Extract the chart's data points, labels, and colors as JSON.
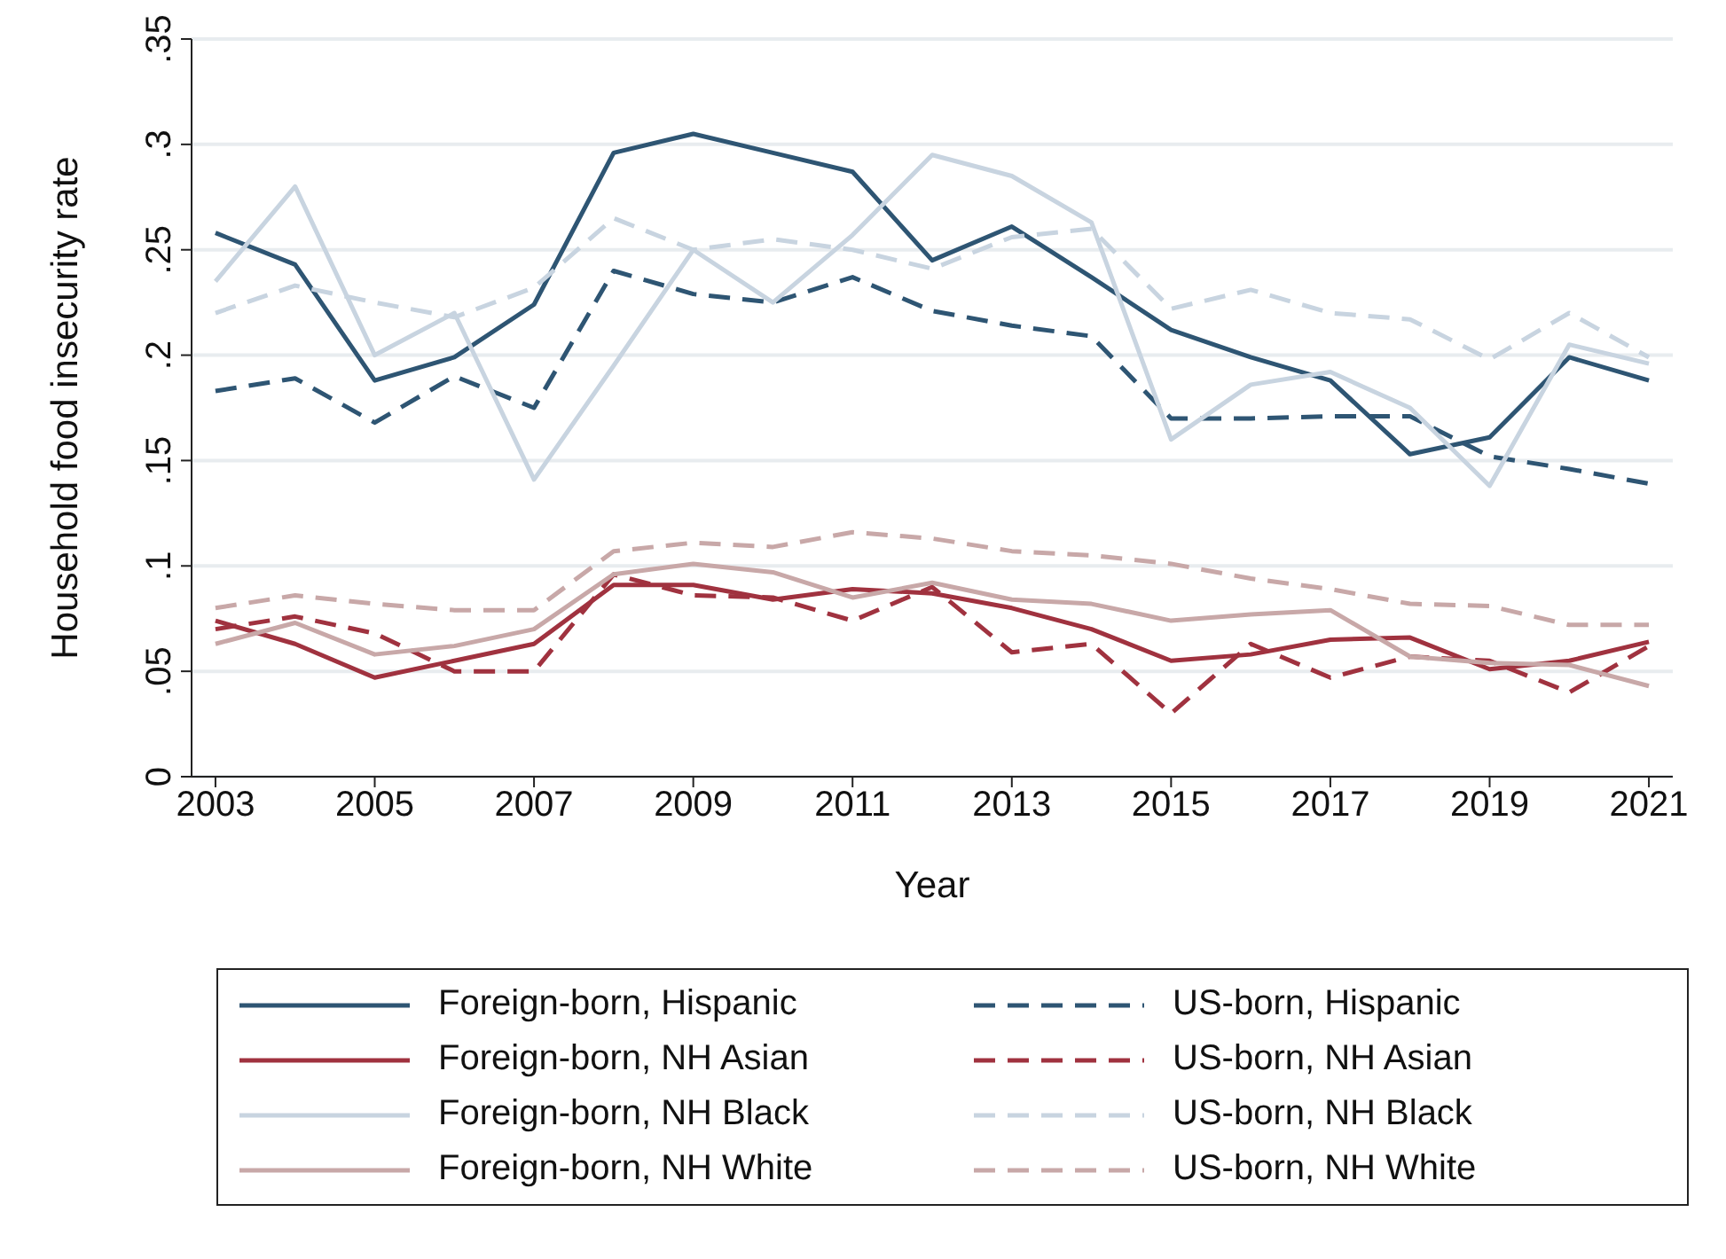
{
  "chart_data": {
    "type": "line",
    "xlabel": "Year",
    "ylabel": "Household food insecurity rate",
    "x": [
      2003,
      2004,
      2005,
      2006,
      2007,
      2008,
      2009,
      2010,
      2011,
      2012,
      2013,
      2014,
      2015,
      2016,
      2017,
      2018,
      2019,
      2020,
      2021
    ],
    "xlim": [
      2002.7,
      2021.3
    ],
    "xticks": [
      2003,
      2005,
      2007,
      2009,
      2011,
      2013,
      2015,
      2017,
      2019,
      2021
    ],
    "ylim": [
      0,
      0.35
    ],
    "yticks": [
      {
        "value": 0,
        "label": "0"
      },
      {
        "value": 0.05,
        "label": ".05"
      },
      {
        "value": 0.1,
        "label": ".1"
      },
      {
        "value": 0.15,
        "label": ".15"
      },
      {
        "value": 0.2,
        "label": ".2"
      },
      {
        "value": 0.25,
        "label": ".25"
      },
      {
        "value": 0.3,
        "label": ".3"
      },
      {
        "value": 0.35,
        "label": ".35"
      }
    ],
    "grid": "y",
    "legend": "bottom",
    "marker": "none",
    "series": [
      {
        "name": "Foreign-born, Hispanic",
        "color": "#2e5573",
        "line_style": "solid",
        "values": [
          0.258,
          0.243,
          0.188,
          0.199,
          0.224,
          0.296,
          0.305,
          0.296,
          0.287,
          0.245,
          0.261,
          0.237,
          0.212,
          0.199,
          0.188,
          0.153,
          0.161,
          0.199,
          0.188
        ]
      },
      {
        "name": "US-born, Hispanic",
        "color": "#2e5573",
        "line_style": "dashed",
        "values": [
          0.183,
          0.189,
          0.168,
          0.19,
          0.175,
          0.24,
          0.229,
          0.225,
          0.237,
          0.221,
          0.214,
          0.209,
          0.17,
          0.17,
          0.171,
          0.171,
          0.152,
          0.146,
          0.139
        ]
      },
      {
        "name": "Foreign-born, NH Asian",
        "color": "#a0323f",
        "line_style": "solid",
        "values": [
          0.074,
          0.063,
          0.047,
          0.055,
          0.063,
          0.091,
          0.091,
          0.084,
          0.089,
          0.087,
          0.08,
          0.07,
          0.055,
          0.058,
          0.065,
          0.066,
          0.051,
          0.055,
          0.064
        ]
      },
      {
        "name": "US-born, NH Asian",
        "color": "#a0323f",
        "line_style": "dashed",
        "values": [
          0.07,
          0.076,
          0.068,
          0.05,
          0.05,
          0.096,
          0.086,
          0.085,
          0.074,
          0.09,
          0.059,
          0.063,
          0.03,
          0.063,
          0.047,
          0.057,
          0.055,
          0.04,
          0.062
        ]
      },
      {
        "name": "Foreign-born, NH Black",
        "color": "#c8d4e0",
        "line_style": "solid",
        "values": [
          0.235,
          0.28,
          0.2,
          0.22,
          0.141,
          0.195,
          0.25,
          0.225,
          0.257,
          0.295,
          0.285,
          0.263,
          0.16,
          0.186,
          0.192,
          0.175,
          0.138,
          0.205,
          0.196
        ]
      },
      {
        "name": "US-born, NH Black",
        "color": "#c8d4e0",
        "line_style": "dashed",
        "values": [
          0.22,
          0.233,
          0.225,
          0.218,
          0.232,
          0.265,
          0.25,
          0.255,
          0.25,
          0.241,
          0.256,
          0.26,
          0.222,
          0.231,
          0.22,
          0.217,
          0.198,
          0.22,
          0.199
        ]
      },
      {
        "name": "Foreign-born, NH White",
        "color": "#c8a8a8",
        "line_style": "solid",
        "values": [
          0.063,
          0.073,
          0.058,
          0.062,
          0.07,
          0.096,
          0.101,
          0.097,
          0.085,
          0.092,
          0.084,
          0.082,
          0.074,
          0.077,
          0.079,
          0.057,
          0.054,
          0.053,
          0.043
        ]
      },
      {
        "name": "US-born, NH White",
        "color": "#c8a8a8",
        "line_style": "dashed",
        "values": [
          0.08,
          0.086,
          0.082,
          0.079,
          0.079,
          0.107,
          0.111,
          0.109,
          0.116,
          0.113,
          0.107,
          0.105,
          0.101,
          0.094,
          0.089,
          0.082,
          0.081,
          0.072,
          0.072
        ]
      }
    ]
  }
}
